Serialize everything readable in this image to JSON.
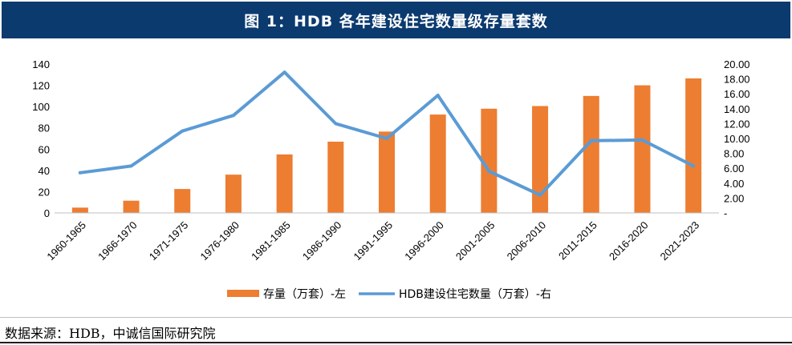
{
  "header": {
    "title": "图 1：HDB 各年建设住宅数量级存量套数"
  },
  "chart_data": {
    "type": "bar",
    "categories": [
      "1960-1965",
      "1966-1970",
      "1971-1975",
      "1976-1980",
      "1981-1985",
      "1986-1990",
      "1991-1995",
      "1996-2000",
      "2001-2005",
      "2006-2010",
      "2011-2015",
      "2016-2020",
      "2021-2023"
    ],
    "series": [
      {
        "name": "存量（万套）-左",
        "type": "bar",
        "axis": "left",
        "color": "#ed7d31",
        "values": [
          5,
          11.5,
          22.5,
          36,
          55,
          67,
          76.5,
          92.5,
          98,
          100.5,
          110,
          120,
          126.5
        ]
      },
      {
        "name": "HDB建设住宅数量（万套）-右",
        "type": "line",
        "axis": "right",
        "color": "#5b9bd5",
        "values": [
          5.4,
          6.3,
          11.0,
          13.1,
          18.9,
          12.0,
          10.0,
          15.8,
          5.6,
          2.4,
          9.7,
          9.8,
          6.3
        ]
      }
    ],
    "left_axis": {
      "ylim": [
        0,
        140
      ],
      "ticks": [
        "0",
        "20",
        "40",
        "60",
        "80",
        "100",
        "120",
        "140"
      ]
    },
    "right_axis": {
      "ylim": [
        0,
        20
      ],
      "ticks": [
        "-",
        "2.00",
        "4.00",
        "6.00",
        "8.00",
        "10.00",
        "12.00",
        "14.00",
        "16.00",
        "18.00",
        "20.00"
      ]
    },
    "legend_position": "bottom",
    "grid": false
  },
  "footer": {
    "source": "数据来源：HDB，中诚信国际研究院"
  }
}
